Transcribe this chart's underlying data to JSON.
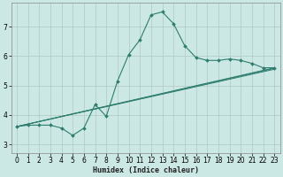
{
  "xlabel": "Humidex (Indice chaleur)",
  "bg_color": "#cce8e4",
  "grid_color": "#b0c8c4",
  "line_color": "#2e7d6e",
  "xlim": [
    -0.5,
    23.5
  ],
  "ylim": [
    2.7,
    7.8
  ],
  "xticks": [
    0,
    1,
    2,
    3,
    4,
    5,
    6,
    7,
    8,
    9,
    10,
    11,
    12,
    13,
    14,
    15,
    16,
    17,
    18,
    19,
    20,
    21,
    22,
    23
  ],
  "yticks": [
    3,
    4,
    5,
    6,
    7
  ],
  "main_x": [
    0,
    1,
    2,
    3,
    4,
    5,
    6,
    7,
    8,
    9,
    10,
    11,
    12,
    13,
    14,
    15,
    16,
    17,
    18,
    19,
    20,
    21,
    22,
    23
  ],
  "main_y": [
    3.6,
    3.65,
    3.65,
    3.65,
    3.55,
    3.3,
    3.55,
    4.35,
    3.95,
    5.15,
    6.05,
    6.55,
    7.4,
    7.5,
    7.1,
    6.35,
    5.95,
    5.85,
    5.85,
    5.9,
    5.85,
    5.75,
    5.6,
    5.6
  ],
  "straight_lines": [
    {
      "x": [
        0,
        23
      ],
      "y": [
        3.6,
        5.6
      ]
    },
    {
      "x": [
        0,
        23
      ],
      "y": [
        3.6,
        5.58
      ]
    },
    {
      "x": [
        0,
        23
      ],
      "y": [
        3.6,
        5.55
      ]
    }
  ]
}
